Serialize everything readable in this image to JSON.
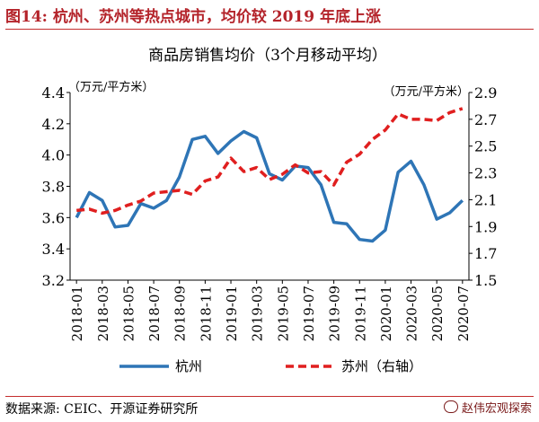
{
  "header": {
    "title": "图14:  杭州、苏州等热点城市，均价较 2019 年底上涨"
  },
  "source": "数据来源:  CEIC、开源证券研究所",
  "watermark": "赵伟宏观探索",
  "colors": {
    "hangzhou": "#2e75b6",
    "suzhou": "#e01f1f",
    "header": "#b4232a",
    "rule": "#c42c2c"
  },
  "chart_data": {
    "type": "line",
    "title": "商品房销售均价（3个月移动平均）",
    "left_unit": "（万元/平方米）",
    "right_unit": "（万元/平方米）",
    "x_tick_labels": [
      "2018-01",
      "2018-03",
      "2018-05",
      "2018-07",
      "2018-09",
      "2018-11",
      "2019-01",
      "2019-03",
      "2019-05",
      "2019-07",
      "2019-09",
      "2019-11",
      "2020-01",
      "2020-03",
      "2020-05",
      "2020-07"
    ],
    "x": [
      "2018-01",
      "2018-02",
      "2018-03",
      "2018-04",
      "2018-05",
      "2018-06",
      "2018-07",
      "2018-08",
      "2018-09",
      "2018-10",
      "2018-11",
      "2018-12",
      "2019-01",
      "2019-02",
      "2019-03",
      "2019-04",
      "2019-05",
      "2019-06",
      "2019-07",
      "2019-08",
      "2019-09",
      "2019-10",
      "2019-11",
      "2019-12",
      "2020-01",
      "2020-02",
      "2020-03",
      "2020-04",
      "2020-05",
      "2020-06",
      "2020-07"
    ],
    "ylim_left": [
      3.2,
      4.4
    ],
    "yticks_left": [
      "3.2",
      "3.4",
      "3.6",
      "3.8",
      "4.0",
      "4.2",
      "4.4"
    ],
    "ylim_right": [
      1.5,
      2.9
    ],
    "yticks_right": [
      "1.5",
      "1.7",
      "1.9",
      "2.1",
      "2.3",
      "2.5",
      "2.7",
      "2.9"
    ],
    "series": [
      {
        "name": "杭州",
        "axis": "left",
        "style": "solid",
        "values": [
          3.6,
          3.76,
          3.71,
          3.54,
          3.55,
          3.69,
          3.66,
          3.71,
          3.86,
          4.1,
          4.12,
          4.01,
          4.09,
          4.15,
          4.11,
          3.88,
          3.84,
          3.93,
          3.92,
          3.81,
          3.57,
          3.56,
          3.46,
          3.45,
          3.52,
          3.89,
          3.96,
          3.81,
          3.59,
          3.63,
          3.71
        ]
      },
      {
        "name": "苏州（右轴）",
        "axis": "right",
        "style": "dashed",
        "values": [
          2.02,
          2.03,
          2.0,
          2.02,
          2.06,
          2.09,
          2.15,
          2.16,
          2.17,
          2.14,
          2.24,
          2.27,
          2.41,
          2.31,
          2.34,
          2.25,
          2.29,
          2.36,
          2.3,
          2.31,
          2.21,
          2.38,
          2.44,
          2.55,
          2.62,
          2.74,
          2.7,
          2.7,
          2.69,
          2.75,
          2.78
        ]
      }
    ],
    "legend": {
      "position": "bottom",
      "items": [
        "杭州",
        "苏州（右轴）"
      ]
    },
    "grid": false
  }
}
